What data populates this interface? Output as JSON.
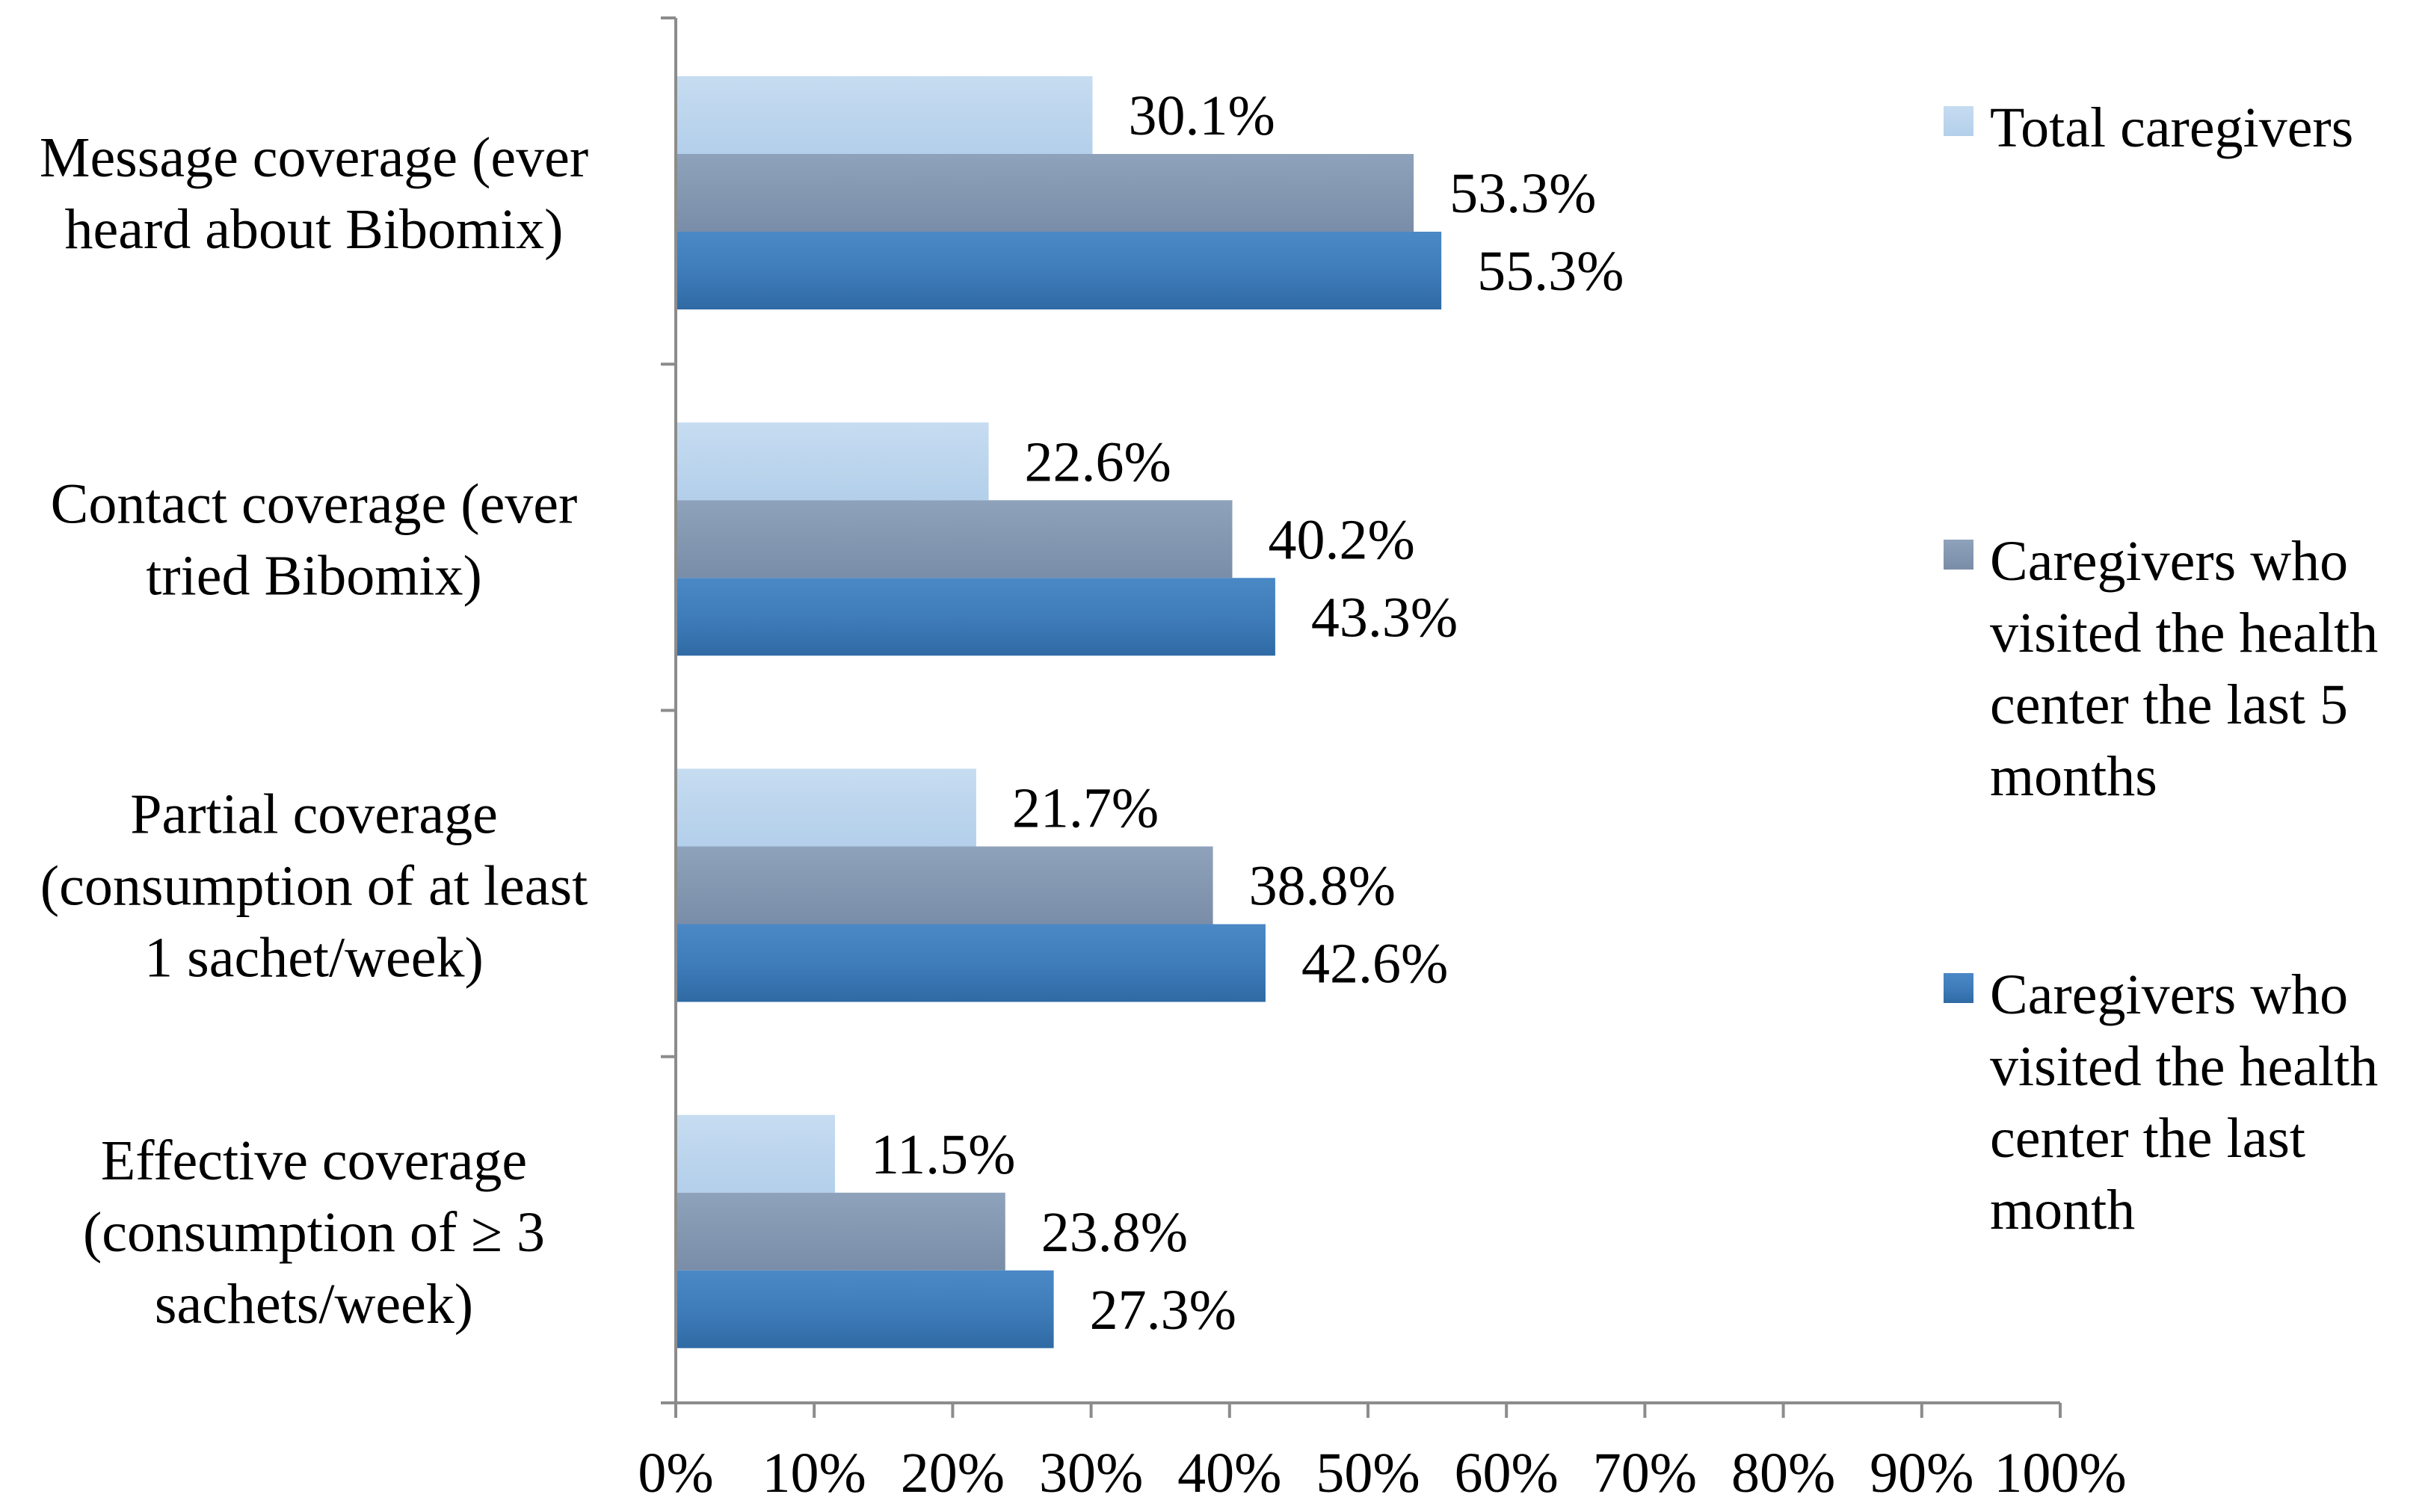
{
  "chart_data": {
    "type": "bar",
    "orientation": "horizontal",
    "title": "",
    "xlabel": "",
    "ylabel": "",
    "xlim": [
      0,
      100
    ],
    "x_ticks": [
      "0%",
      "10%",
      "20%",
      "30%",
      "40%",
      "50%",
      "60%",
      "70%",
      "80%",
      "90%",
      "100%"
    ],
    "grid": false,
    "legend_position": "right",
    "categories": [
      [
        "Message coverage (ever",
        "heard about Bibomix)"
      ],
      [
        "Contact coverage (ever",
        "tried Bibomix)"
      ],
      [
        "Partial coverage",
        "(consumption of  at least",
        "1 sachet/week)"
      ],
      [
        "Effective coverage",
        "(consumption of ≥ 3",
        "sachets/week)"
      ]
    ],
    "series": [
      {
        "name": "Total caregivers",
        "legend_lines": [
          "Total caregivers"
        ],
        "color": "#bdd7ee",
        "values": [
          30.1,
          22.6,
          21.7,
          11.5
        ],
        "labels": [
          "30.1%",
          "22.6%",
          "21.7%",
          "11.5%"
        ]
      },
      {
        "name": "Caregivers who visited the health center the last 5 months",
        "legend_lines": [
          "Caregivers who",
          "visited the health",
          "center the last 5",
          "months"
        ],
        "color": "#8497b0",
        "values": [
          53.3,
          40.2,
          38.8,
          23.8
        ],
        "labels": [
          "53.3%",
          "40.2%",
          "38.8%",
          "23.8%"
        ]
      },
      {
        "name": "Caregivers who visited the health center the last month",
        "legend_lines": [
          "Caregivers who",
          "visited the health",
          "center the last",
          "month"
        ],
        "color": "#3b78b5",
        "values": [
          55.3,
          43.3,
          42.6,
          27.3
        ],
        "labels": [
          "55.3%",
          "43.3%",
          "42.6%",
          "27.3%"
        ]
      }
    ]
  }
}
